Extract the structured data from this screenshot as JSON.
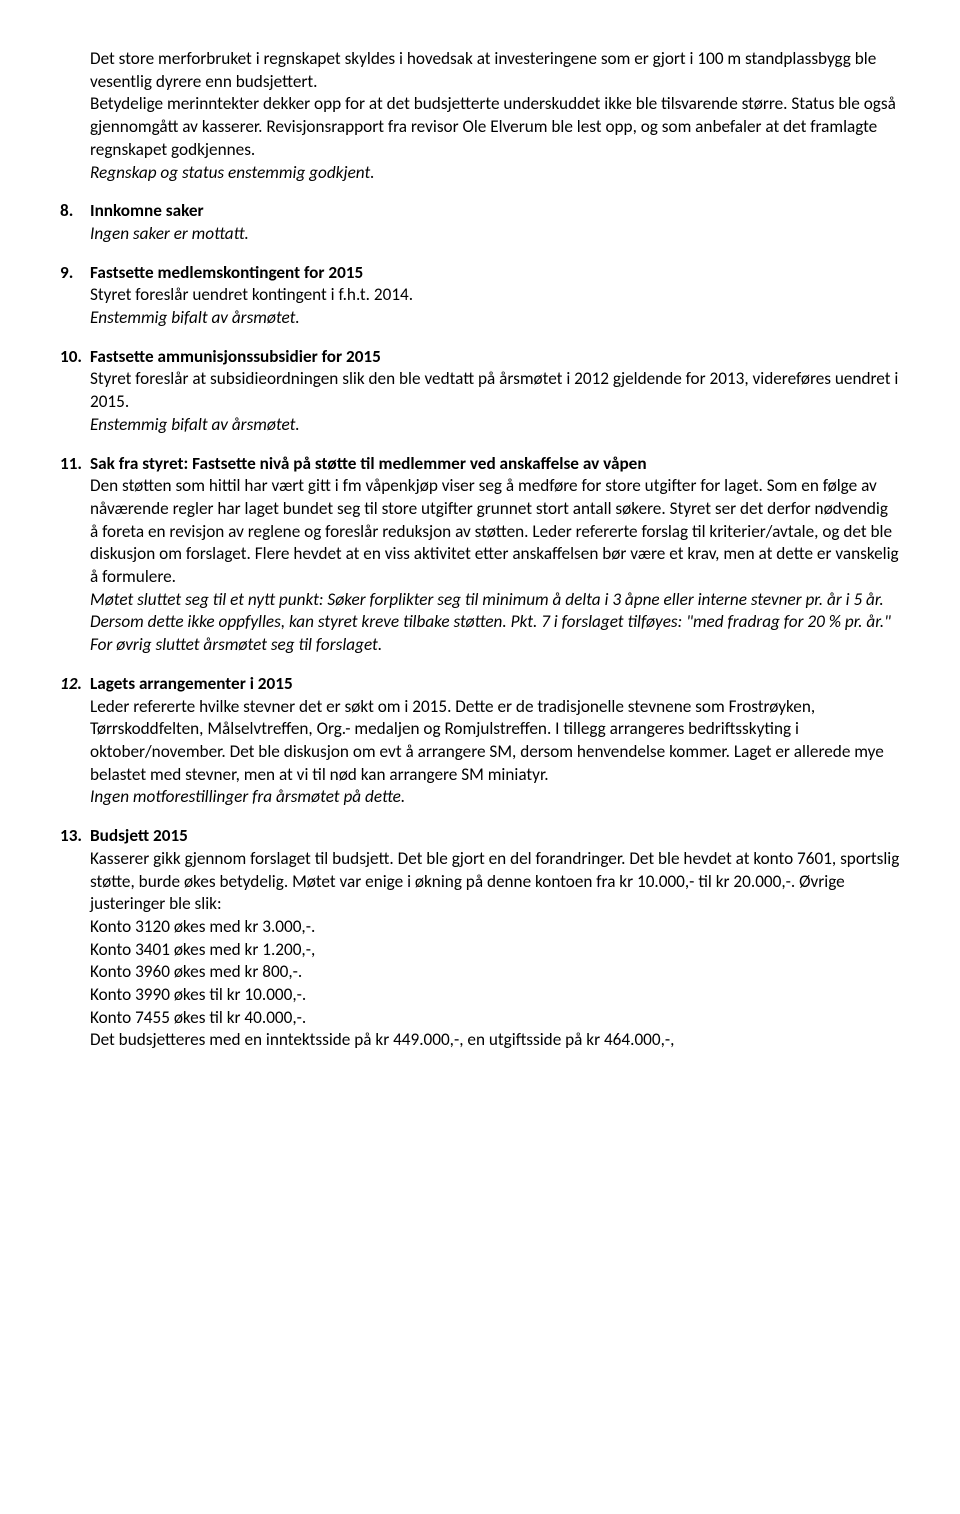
{
  "intro": {
    "p1": "Det store merforbruket i regnskapet skyldes i hovedsak at investeringene som er gjort i 100 m standplassbygg ble vesentlig dyrere enn budsjettert.",
    "p2": "Betydelige merinntekter dekker opp for at det budsjetterte underskuddet ikke ble tilsvarende større. Status ble også gjennomgått av kasserer. Revisjonsrapport fra revisor Ole Elverum ble lest opp, og som anbefaler at det framlagte regnskapet godkjennes.",
    "p3_italic": "Regnskap og status enstemmig godkjent."
  },
  "items": {
    "8": {
      "num": "8.",
      "title": "Innkomne saker",
      "body_italic": "Ingen saker er mottatt."
    },
    "9": {
      "num": "9.",
      "title": "Fastsette medlemskontingent for 2015",
      "body1": "Styret foreslår uendret kontingent i f.h.t. 2014.",
      "body2_italic": "Enstemmig bifalt av årsmøtet."
    },
    "10": {
      "num": "10.",
      "title": "Fastsette ammunisjonssubsidier for 2015",
      "body1": "Styret foreslår at subsidieordningen slik den ble vedtatt på årsmøtet i 2012 gjeldende for 2013, videreføres uendret i 2015.",
      "body2_italic": "Enstemmig bifalt av årsmøtet."
    },
    "11": {
      "num": "11.",
      "title": "Sak fra styret: Fastsette nivå på støtte til medlemmer ved anskaffelse av våpen",
      "body1": "Den støtten som hittil har vært gitt i fm våpenkjøp viser seg å medføre for store utgifter for laget. Som en følge av nåværende regler har laget bundet seg til store utgifter grunnet stort antall søkere. Styret ser det derfor nødvendig å foreta en revisjon av reglene og foreslår reduksjon av støtten. Leder refererte forslag til kriterier/avtale, og det ble diskusjon om forslaget. Flere hevdet at en viss aktivitet etter anskaffelsen bør være et krav, men at dette er vanskelig å formulere.",
      "body2_italic": "Møtet sluttet seg til et nytt punkt: Søker forplikter seg til minimum å delta i 3 åpne eller interne stevner pr. år i 5 år. Dersom dette ikke oppfylles, kan styret kreve tilbake støtten. Pkt. 7 i forslaget tilføyes:  \"med fradrag for 20 % pr. år.\" For øvrig sluttet årsmøtet seg til forslaget."
    },
    "12": {
      "num": "12.",
      "title": "Lagets arrangementer i 2015",
      "body1": "Leder refererte hvilke stevner det er søkt om i 2015. Dette er de tradisjonelle stevnene som Frostrøyken, Tørrskoddfelten, Målselvtreffen, Org.- medaljen og Romjulstreffen. I tillegg arrangeres bedriftsskyting i oktober/november. Det ble diskusjon om evt å arrangere SM, dersom henvendelse kommer. Laget er allerede mye belastet med stevner, men at vi til nød kan arrangere SM miniatyr.",
      "body2_italic": "Ingen motforestillinger fra årsmøtet på dette."
    },
    "13": {
      "num": "13.",
      "title": "Budsjett 2015",
      "body1": "Kasserer gikk gjennom forslaget til budsjett. Det ble gjort en del forandringer. Det ble hevdet at konto 7601, sportslig støtte, burde økes betydelig. Møtet var enige i økning på denne kontoen fra kr 10.000,- til kr 20.000,-. Øvrige justeringer ble slik:",
      "l1": "Konto 3120 økes med kr 3.000,-.",
      "l2": "Konto 3401 økes med kr 1.200,-,",
      "l3": "Konto 3960 økes med kr 800,-.",
      "l4": "Konto 3990 økes til kr 10.000,-.",
      "l5": "Konto 7455 økes til kr 40.000,-.",
      "l6": "Det budsjetteres med en inntektsside på kr 449.000,-, en utgiftsside på kr 464.000,-,"
    }
  }
}
